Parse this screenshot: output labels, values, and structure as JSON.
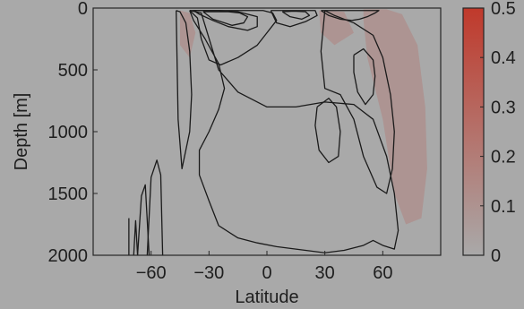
{
  "chart_data": {
    "type": "contour",
    "title": "",
    "xlabel": "Latitude",
    "ylabel": "Depth [m]",
    "xlim": [
      -90,
      90
    ],
    "ylim": [
      0,
      2000
    ],
    "y_inverted": true,
    "xticks": [
      -60,
      -30,
      0,
      30,
      60
    ],
    "xtick_labels": [
      "−60",
      "−30",
      "0",
      "30",
      "60"
    ],
    "yticks": [
      0,
      500,
      1000,
      1500,
      2000
    ],
    "ytick_labels": [
      "0",
      "500",
      "1000",
      "1500",
      "2000"
    ],
    "colorbar": {
      "range": [
        0,
        0.5
      ],
      "ticks": [
        0,
        0.1,
        0.2,
        0.3,
        0.4,
        0.5
      ],
      "tick_labels": [
        "0",
        "0.1",
        "0.2",
        "0.3",
        "0.4",
        "0.5"
      ],
      "color_low": "#a9a9a9",
      "color_high": "#c0392b"
    },
    "shading": [
      {
        "name": "south-shading",
        "x": [
          -45,
          -40,
          -37,
          -40,
          -45
        ],
        "y": [
          20,
          40,
          200,
          400,
          300
        ]
      },
      {
        "name": "tropics-north-shading",
        "x": [
          27,
          40,
          45,
          35,
          28
        ],
        "y": [
          20,
          30,
          200,
          300,
          200
        ]
      },
      {
        "name": "north-shading",
        "x": [
          50,
          62,
          70,
          78,
          82,
          83,
          80,
          72,
          66,
          60,
          52,
          50
        ],
        "y": [
          10,
          10,
          50,
          300,
          800,
          1300,
          1700,
          1750,
          1500,
          900,
          400,
          100
        ]
      }
    ],
    "contours": [
      {
        "name": "big-outer-contour",
        "x": [
          -40,
          -34,
          -25,
          -15,
          0,
          15,
          30,
          45,
          55,
          62,
          66,
          68,
          66,
          60,
          55,
          50,
          40,
          30,
          20,
          5,
          -5,
          -15,
          -25,
          -30,
          -35,
          -35,
          -30,
          -25,
          -22,
          -25,
          -32,
          -38,
          -40
        ],
        "y": [
          20,
          40,
          500,
          680,
          800,
          800,
          760,
          780,
          900,
          1200,
          1500,
          1800,
          1950,
          1920,
          1880,
          1920,
          1960,
          1980,
          1960,
          1930,
          1900,
          1860,
          1760,
          1560,
          1350,
          1150,
          1000,
          820,
          650,
          450,
          250,
          100,
          20
        ]
      },
      {
        "name": "north-loop-contour",
        "x": [
          30,
          35,
          45,
          55,
          60,
          64,
          66,
          65,
          62,
          57,
          50,
          45,
          38,
          30,
          28,
          30
        ],
        "y": [
          20,
          60,
          120,
          220,
          400,
          700,
          1000,
          1300,
          1500,
          1450,
          1200,
          900,
          700,
          650,
          350,
          20
        ]
      },
      {
        "name": "north-inner-loop-contour",
        "x": [
          45,
          50,
          55,
          56,
          55,
          51,
          47,
          45,
          45
        ],
        "y": [
          380,
          330,
          420,
          550,
          700,
          780,
          680,
          520,
          380
        ]
      },
      {
        "name": "tropics-oval-contour",
        "x": [
          26,
          32,
          36,
          38,
          37,
          32,
          27,
          25,
          26
        ],
        "y": [
          800,
          730,
          800,
          1000,
          1200,
          1250,
          1150,
          950,
          800
        ]
      },
      {
        "name": "south-narrow-contour",
        "x": [
          -47,
          -45,
          -42,
          -40,
          -39,
          -40,
          -44,
          -46,
          -47
        ],
        "y": [
          20,
          30,
          120,
          350,
          700,
          1000,
          1300,
          900,
          20
        ]
      },
      {
        "name": "southern-convergence-outer",
        "x": [
          -38,
          -35,
          -28,
          -20,
          -10,
          -5,
          -5,
          -15,
          -25,
          -30,
          -35,
          -38
        ],
        "y": [
          20,
          50,
          100,
          150,
          180,
          150,
          70,
          30,
          20,
          20,
          20,
          20
        ]
      },
      {
        "name": "southern-convergence-mid",
        "x": [
          -40,
          -36,
          -34,
          -30,
          -24,
          -15,
          -5,
          0,
          5,
          3,
          -2,
          -8,
          -16,
          -24,
          -30,
          -36,
          -40
        ],
        "y": [
          20,
          80,
          250,
          420,
          460,
          400,
          300,
          200,
          100,
          40,
          20,
          20,
          20,
          20,
          20,
          20,
          20
        ]
      },
      {
        "name": "southern-convergence-inner",
        "x": [
          -33,
          -28,
          -18,
          -12,
          -10,
          -14,
          -20,
          -27,
          -33
        ],
        "y": [
          30,
          90,
          140,
          120,
          70,
          40,
          30,
          30,
          30
        ]
      },
      {
        "name": "equator-contour",
        "x": [
          2,
          5,
          12,
          20,
          26,
          25,
          20,
          12,
          5,
          2
        ],
        "y": [
          20,
          120,
          150,
          110,
          60,
          20,
          20,
          20,
          20,
          20
        ]
      },
      {
        "name": "equator-inner-contour",
        "x": [
          8,
          12,
          18,
          22,
          20,
          14,
          8
        ],
        "y": [
          30,
          70,
          90,
          60,
          30,
          25,
          30
        ]
      },
      {
        "name": "north-surface-contour",
        "x": [
          28,
          32,
          38,
          44,
          48,
          52,
          56,
          58,
          55,
          48,
          40,
          32,
          28
        ],
        "y": [
          20,
          60,
          90,
          100,
          90,
          70,
          40,
          20,
          20,
          20,
          20,
          20,
          20
        ]
      },
      {
        "name": "antarctic-tall-contour",
        "x": [
          -62,
          -60,
          -57,
          -55,
          -54
        ],
        "y": [
          2000,
          1370,
          1230,
          1350,
          2000
        ]
      },
      {
        "name": "antarctic-mid-contour",
        "x": [
          -67,
          -65,
          -63,
          -61
        ],
        "y": [
          2000,
          1520,
          1430,
          2000
        ]
      },
      {
        "name": "antarctic-small-contour",
        "x": [
          -69,
          -68,
          -67
        ],
        "y": [
          2000,
          1720,
          2000
        ]
      },
      {
        "name": "antarctic-edge-contour",
        "x": [
          -71.5,
          -71.5
        ],
        "y": [
          2000,
          1700
        ]
      }
    ]
  }
}
